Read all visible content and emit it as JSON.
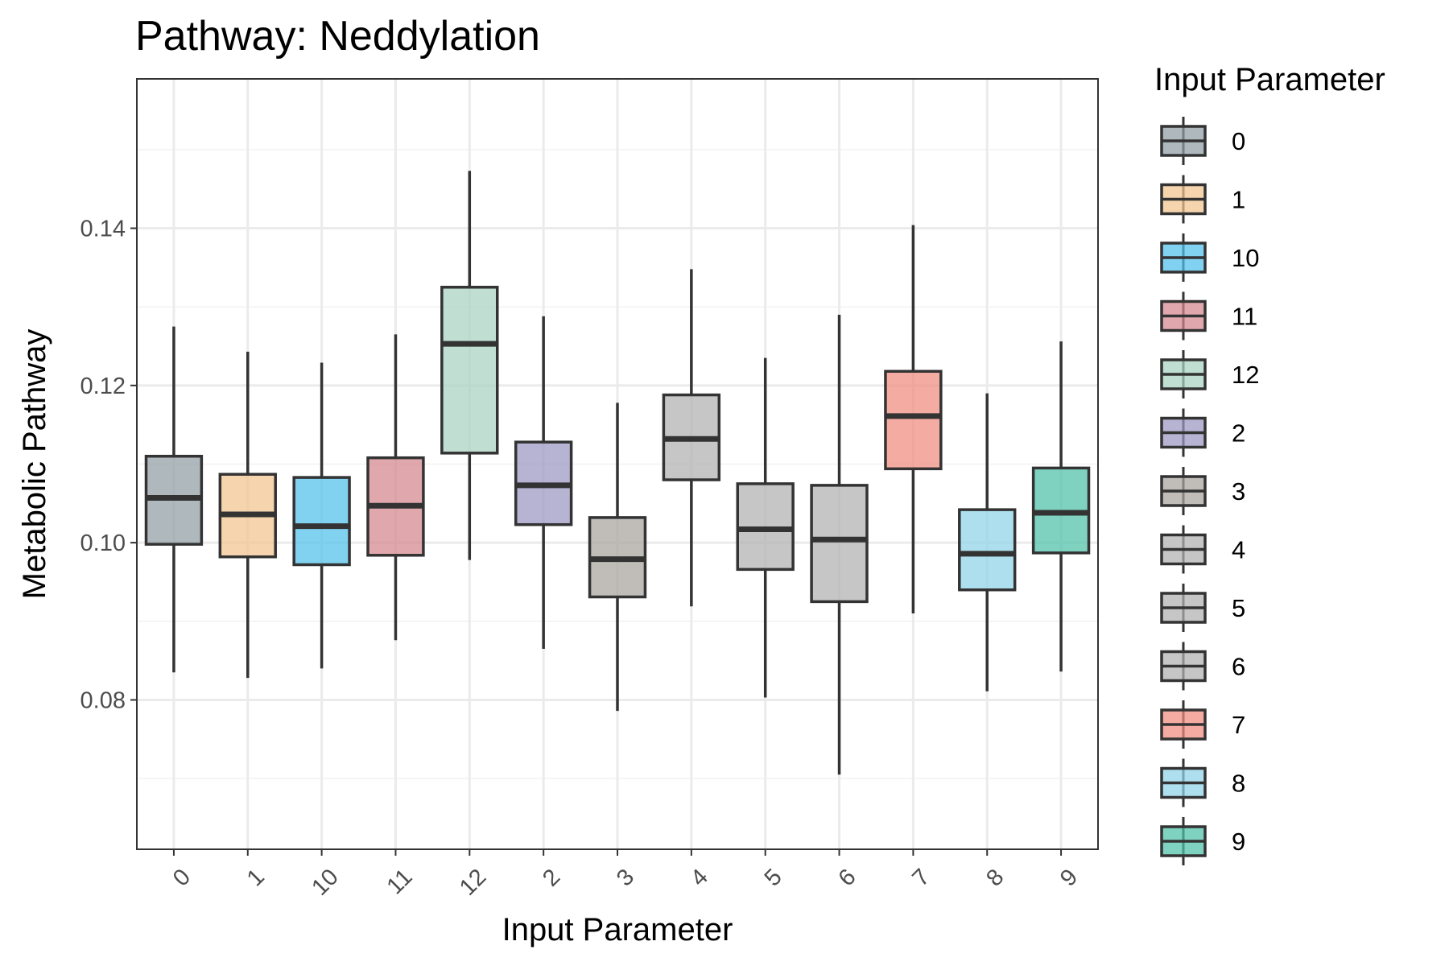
{
  "chart_data": {
    "type": "box",
    "title": "Pathway: Neddylation",
    "xlabel": "Input Parameter",
    "ylabel": "Metabolic Pathway",
    "ylim": [
      0.061,
      0.159
    ],
    "yticks": [
      0.08,
      0.1,
      0.12,
      0.14
    ],
    "ytick_labels": [
      "0.08",
      "0.10",
      "0.12",
      "0.14"
    ],
    "grid": true,
    "legend": {
      "title": "Input Parameter",
      "position": "right"
    },
    "categories": [
      "0",
      "1",
      "10",
      "11",
      "12",
      "2",
      "3",
      "4",
      "5",
      "6",
      "7",
      "8",
      "9"
    ],
    "boxes": [
      {
        "category": "0",
        "whisker_low": 0.0835,
        "q1": 0.0998,
        "median": 0.1057,
        "q3": 0.111,
        "whisker_high": 0.1275,
        "color": "#8f9ca3"
      },
      {
        "category": "1",
        "whisker_low": 0.0828,
        "q1": 0.0982,
        "median": 0.1036,
        "q3": 0.1087,
        "whisker_high": 0.1243,
        "color": "#f3c38f"
      },
      {
        "category": "10",
        "whisker_low": 0.084,
        "q1": 0.0972,
        "median": 0.1021,
        "q3": 0.1083,
        "whisker_high": 0.1229,
        "color": "#4fc1ea"
      },
      {
        "category": "11",
        "whisker_low": 0.0876,
        "q1": 0.0984,
        "median": 0.1047,
        "q3": 0.1108,
        "whisker_high": 0.1265,
        "color": "#d4868e"
      },
      {
        "category": "12",
        "whisker_low": 0.0978,
        "q1": 0.1114,
        "median": 0.1253,
        "q3": 0.1325,
        "whisker_high": 0.1473,
        "color": "#a8d3c0"
      },
      {
        "category": "2",
        "whisker_low": 0.0865,
        "q1": 0.1023,
        "median": 0.1073,
        "q3": 0.1128,
        "whisker_high": 0.1288,
        "color": "#9a96c2"
      },
      {
        "category": "3",
        "whisker_low": 0.0786,
        "q1": 0.0931,
        "median": 0.0979,
        "q3": 0.1032,
        "whisker_high": 0.1178,
        "color": "#a8a49e"
      },
      {
        "category": "4",
        "whisker_low": 0.0919,
        "q1": 0.108,
        "median": 0.1132,
        "q3": 0.1188,
        "whisker_high": 0.1348,
        "color": "#b0b0b0"
      },
      {
        "category": "5",
        "whisker_low": 0.0803,
        "q1": 0.0966,
        "median": 0.1017,
        "q3": 0.1075,
        "whisker_high": 0.1235,
        "color": "#b0b0b0"
      },
      {
        "category": "6",
        "whisker_low": 0.0705,
        "q1": 0.0925,
        "median": 0.1004,
        "q3": 0.1073,
        "whisker_high": 0.129,
        "color": "#b0b0b0"
      },
      {
        "category": "7",
        "whisker_low": 0.091,
        "q1": 0.1094,
        "median": 0.1161,
        "q3": 0.1218,
        "whisker_high": 0.1404,
        "color": "#f08a7e"
      },
      {
        "category": "8",
        "whisker_low": 0.0811,
        "q1": 0.094,
        "median": 0.0986,
        "q3": 0.1042,
        "whisker_high": 0.119,
        "color": "#8fd3e8"
      },
      {
        "category": "9",
        "whisker_low": 0.0836,
        "q1": 0.0987,
        "median": 0.1038,
        "q3": 0.1095,
        "whisker_high": 0.1256,
        "color": "#4ec1a8"
      }
    ]
  }
}
